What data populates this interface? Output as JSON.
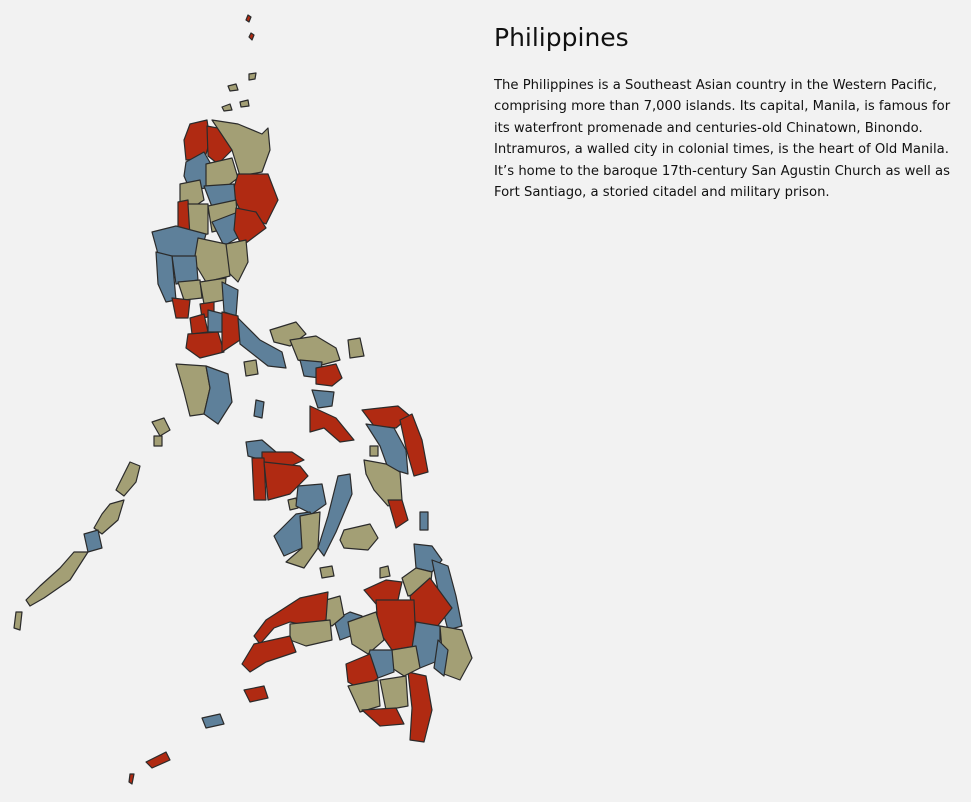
{
  "country": {
    "name": "Philippines",
    "description": "The Philippines is a Southeast Asian country in the Western Pacific, comprising more than 7,000 islands. Its capital, Manila, is famous for its waterfront promenade and centuries-old Chinatown, Binondo. Intramuros, a walled city in colonial times, is the heart of Old Manila. It’s home to the baroque 17th-century San Agustin Church as well as Fort Santiago, a storied citadel and military prison."
  },
  "map": {
    "region_colors": {
      "red": "#b02a12",
      "blue": "#5e809a",
      "khaki": "#a39f75"
    },
    "border_color": "#2b2b2b",
    "background": "#f2f2f2"
  }
}
